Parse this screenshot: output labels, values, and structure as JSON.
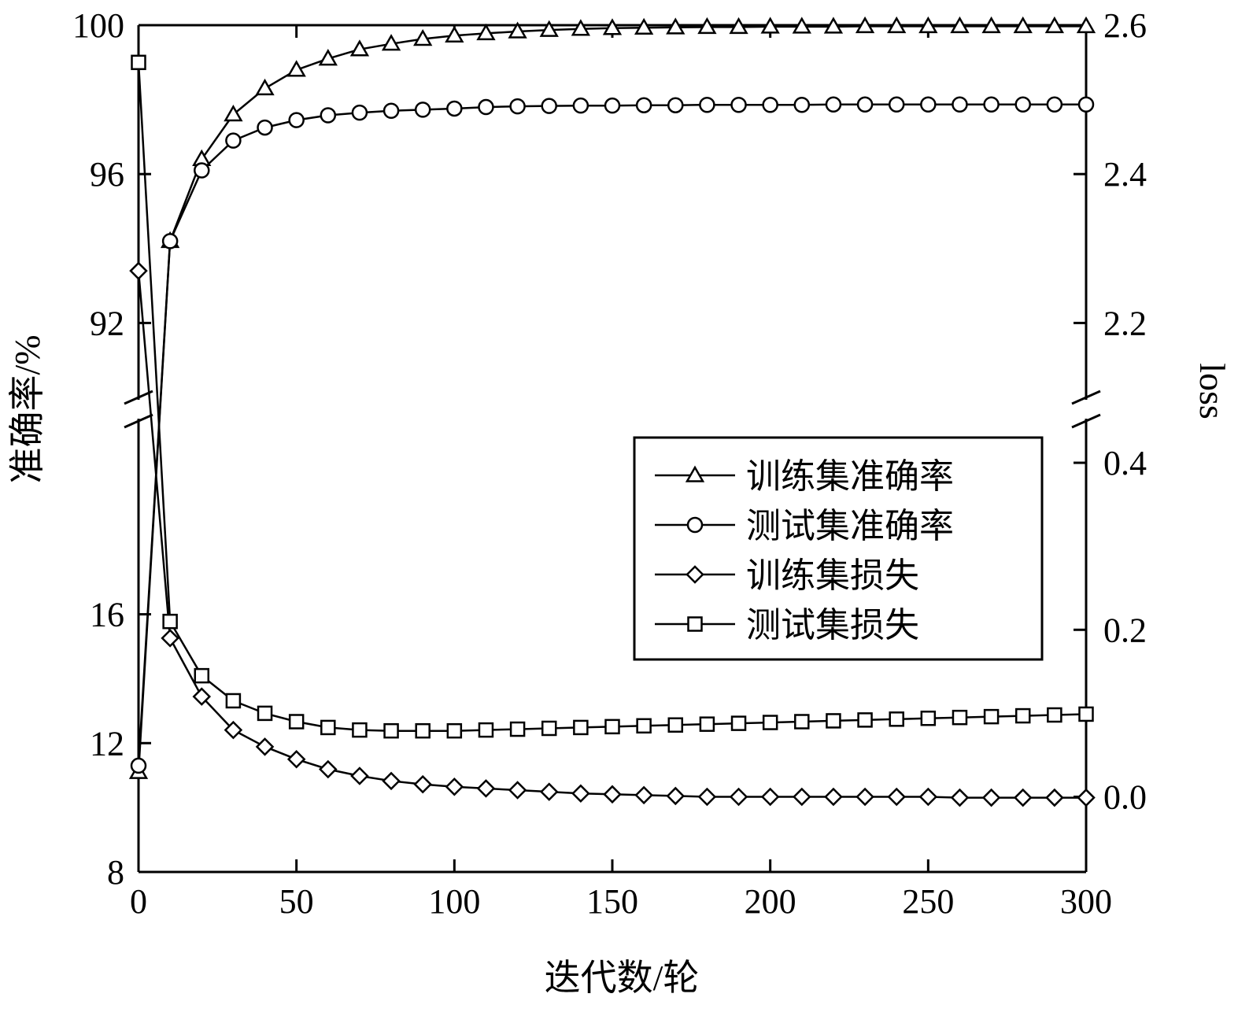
{
  "chart_data": {
    "type": "line",
    "title": "",
    "xlabel": "迭代数/轮",
    "ylabel_left": "准确率/%",
    "ylabel_right": "loss",
    "xlim": [
      0,
      300
    ],
    "x_ticks": [
      "0",
      "50",
      "100",
      "150",
      "200",
      "250",
      "300"
    ],
    "left_axis": {
      "broken": true,
      "upper_range": [
        90,
        100
      ],
      "upper_ticks": [
        "92",
        "96",
        "100"
      ],
      "lower_range": [
        8,
        22
      ],
      "lower_ticks": [
        "8",
        "12",
        "16"
      ]
    },
    "right_axis": {
      "broken": true,
      "upper_range": [
        2.1,
        2.6
      ],
      "upper_ticks": [
        "2.2",
        "2.4",
        "2.6"
      ],
      "lower_range": [
        -0.09,
        0.45
      ],
      "lower_ticks": [
        "0.0",
        "0.2",
        "0.4"
      ]
    },
    "grid": false,
    "legend_position": "center-right",
    "x": [
      0,
      10,
      20,
      30,
      40,
      50,
      60,
      70,
      80,
      90,
      100,
      110,
      120,
      130,
      140,
      150,
      160,
      170,
      180,
      190,
      200,
      210,
      220,
      230,
      240,
      250,
      260,
      270,
      280,
      290,
      300
    ],
    "series": [
      {
        "name": "训练集准确率",
        "axis": "left",
        "marker": "triangle",
        "values": [
          11.1,
          94.2,
          96.4,
          97.6,
          98.3,
          98.8,
          99.1,
          99.35,
          99.5,
          99.63,
          99.72,
          99.78,
          99.83,
          99.87,
          99.9,
          99.92,
          99.93,
          99.94,
          99.95,
          99.95,
          99.96,
          99.96,
          99.96,
          99.97,
          99.97,
          99.97,
          99.97,
          99.97,
          99.97,
          99.97,
          99.97
        ]
      },
      {
        "name": "测试集准确率",
        "axis": "left",
        "marker": "circle",
        "values": [
          11.3,
          94.2,
          96.1,
          96.9,
          97.25,
          97.45,
          97.58,
          97.65,
          97.7,
          97.73,
          97.76,
          97.8,
          97.82,
          97.83,
          97.84,
          97.84,
          97.85,
          97.85,
          97.86,
          97.86,
          97.86,
          97.86,
          97.87,
          97.87,
          97.87,
          97.87,
          97.87,
          97.87,
          97.87,
          97.87,
          97.87
        ]
      },
      {
        "name": "训练集损失",
        "axis": "right",
        "marker": "diamond",
        "values": [
          2.27,
          0.19,
          0.12,
          0.08,
          0.06,
          0.045,
          0.033,
          0.025,
          0.019,
          0.015,
          0.012,
          0.01,
          0.008,
          0.006,
          0.004,
          0.003,
          0.002,
          0.001,
          0.0,
          0.0,
          0.0,
          0.0,
          0.0,
          0.0,
          0.0,
          0.0,
          -0.001,
          -0.001,
          -0.001,
          -0.001,
          -0.001
        ]
      },
      {
        "name": "测试集损失",
        "axis": "right",
        "marker": "square",
        "values": [
          2.55,
          0.21,
          0.145,
          0.115,
          0.1,
          0.09,
          0.083,
          0.08,
          0.079,
          0.079,
          0.079,
          0.08,
          0.081,
          0.082,
          0.083,
          0.084,
          0.085,
          0.086,
          0.087,
          0.088,
          0.089,
          0.09,
          0.091,
          0.092,
          0.093,
          0.094,
          0.095,
          0.096,
          0.097,
          0.098,
          0.099
        ]
      }
    ]
  }
}
